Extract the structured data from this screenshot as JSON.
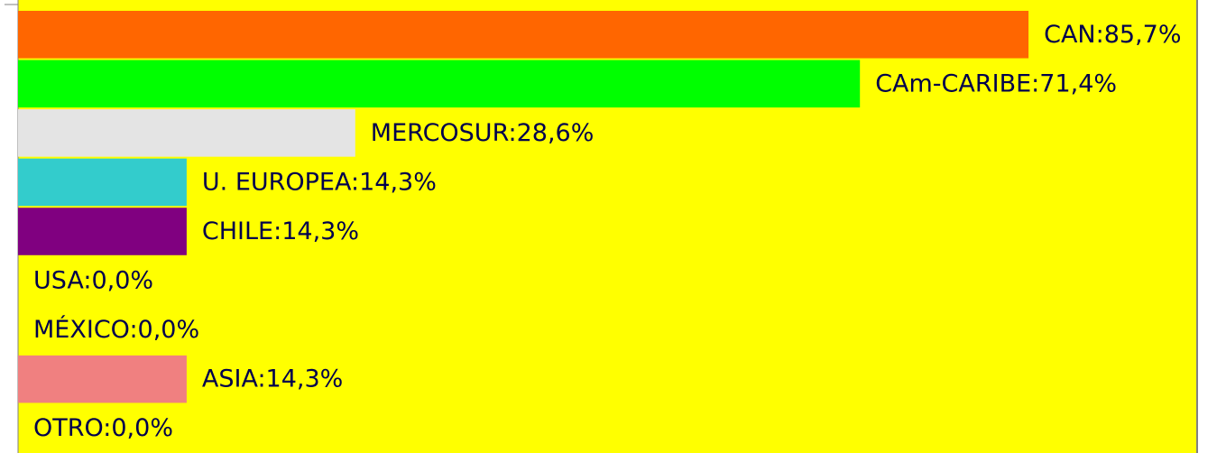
{
  "chart_data": {
    "type": "barh",
    "categories": [
      "CAN",
      "CAm-CARIBE",
      "MERCOSUR",
      "U. EUROPEA",
      "CHILE",
      "USA",
      "MÉXICO",
      "ASIA",
      "OTRO"
    ],
    "values": [
      85.7,
      71.4,
      28.6,
      14.3,
      14.3,
      0,
      0,
      14.3,
      0
    ],
    "value_labels": [
      "CAN:85,7%",
      "CAm-CARIBE:71,4%",
      "MERCOSUR:28,6%",
      "U. EUROPEA:14,3%",
      "CHILE:14,3%",
      "USA:0,0%",
      "MÉXICO:0,0%",
      "ASIA:14,3%",
      "OTRO:0,0%"
    ],
    "colors": [
      "#ff6600",
      "#00ff00",
      "#e4e4e4",
      "#33cccc",
      "#800080",
      null,
      null,
      "#f08080",
      null
    ],
    "xlim": [
      0,
      100
    ],
    "background": "#ffff00"
  }
}
